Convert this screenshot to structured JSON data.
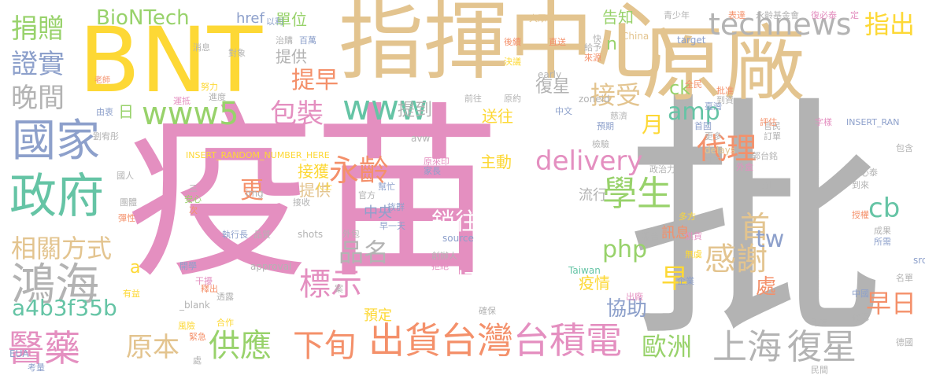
{
  "palette": {
    "pink": "#e48fc0",
    "gray": "#b3b3b3",
    "yellow": "#fdd835",
    "tan": "#e3c48f",
    "green": "#98d26b",
    "teal": "#65c4a5",
    "orange": "#f4906a",
    "blue": "#8da0cb"
  },
  "words": [
    {
      "id": "w01",
      "text": "疫苗"
    },
    {
      "id": "w02",
      "text": "批"
    },
    {
      "id": "w03",
      "text": "指揮中心"
    },
    {
      "id": "w04",
      "text": "原廠"
    },
    {
      "id": "w05",
      "text": "BNT"
    },
    {
      "id": "w06",
      "text": "政府"
    },
    {
      "id": "w07",
      "text": "國家"
    },
    {
      "id": "w08",
      "text": "鴻海"
    },
    {
      "id": "w09",
      "text": "醫藥"
    },
    {
      "id": "w10",
      "text": "出貨"
    },
    {
      "id": "w11",
      "text": "台灣"
    },
    {
      "id": "w12",
      "text": "台積電"
    },
    {
      "id": "w13",
      "text": "上海"
    },
    {
      "id": "w14",
      "text": "復星"
    },
    {
      "id": "w15",
      "text": "technews"
    },
    {
      "id": "w16",
      "text": "學生"
    },
    {
      "id": "w17",
      "text": "代理"
    },
    {
      "id": "w18",
      "text": "首"
    },
    {
      "id": "w19",
      "text": "感謝"
    },
    {
      "id": "w20",
      "text": "供應"
    },
    {
      "id": "w21",
      "text": "下旬"
    },
    {
      "id": "w22",
      "text": "標示"
    },
    {
      "id": "w23",
      "text": "永齡"
    },
    {
      "id": "w24",
      "text": "delivery"
    },
    {
      "id": "w25",
      "text": "www5"
    },
    {
      "id": "w26",
      "text": "www"
    },
    {
      "id": "w27",
      "text": "包裝"
    },
    {
      "id": "w28",
      "text": "BioNTech"
    },
    {
      "id": "w29",
      "text": "捐贈"
    },
    {
      "id": "w30",
      "text": "證實"
    },
    {
      "id": "w31",
      "text": "晚間"
    },
    {
      "id": "w32",
      "text": "相關方式"
    },
    {
      "id": "w33",
      "text": "品名"
    },
    {
      "id": "w34",
      "text": "原本"
    },
    {
      "id": "w35",
      "text": "歐洲"
    },
    {
      "id": "w36",
      "text": "早日"
    },
    {
      "id": "w37",
      "text": "協助"
    },
    {
      "id": "w38",
      "text": "a4b3f35b"
    },
    {
      "id": "w39",
      "text": "amp"
    },
    {
      "id": "w40",
      "text": "php"
    },
    {
      "id": "w41",
      "text": "月"
    },
    {
      "id": "w42",
      "text": "早"
    },
    {
      "id": "w43",
      "text": "接受"
    },
    {
      "id": "w44",
      "text": "提早"
    },
    {
      "id": "w45",
      "text": "cb"
    },
    {
      "id": "w46",
      "text": "tw"
    },
    {
      "id": "w47",
      "text": "處"
    },
    {
      "id": "w48",
      "text": "指出"
    },
    {
      "id": "w49",
      "text": "銷往"
    },
    {
      "id": "w50",
      "text": "製造"
    },
    {
      "id": "w51",
      "text": "施打"
    },
    {
      "id": "w52",
      "text": "期程"
    },
    {
      "id": "w53",
      "text": "單位"
    },
    {
      "id": "w54",
      "text": "href"
    },
    {
      "id": "w55",
      "text": "告知"
    },
    {
      "id": "w56",
      "text": "提供"
    },
    {
      "id": "w57",
      "text": "ck"
    },
    {
      "id": "w58",
      "text": "n"
    },
    {
      "id": "w59",
      "text": "復星"
    },
    {
      "id": "w60",
      "text": "提到"
    },
    {
      "id": "w61",
      "text": "送往"
    },
    {
      "id": "w62",
      "text": "主動"
    },
    {
      "id": "w63",
      "text": "接獲"
    },
    {
      "id": "w64",
      "text": "更"
    },
    {
      "id": "w65",
      "text": "提供"
    },
    {
      "id": "w66",
      "text": "流行"
    },
    {
      "id": "w67",
      "text": "中央"
    },
    {
      "id": "w68",
      "text": "疫情"
    },
    {
      "id": "w69",
      "text": "訊息"
    },
    {
      "id": "w70",
      "text": "預定"
    },
    {
      "id": "w71",
      "text": "a"
    },
    {
      "id": "w72",
      "text": "日"
    },
    {
      "id": "w73",
      "text": "INSERT_RANDOM_NUMBER_HERE"
    },
    {
      "id": "w74",
      "text": "INSERT_RAN"
    },
    {
      "id": "w75",
      "text": "zoneid"
    },
    {
      "id": "w76",
      "text": "source"
    },
    {
      "id": "w77",
      "text": "approval"
    },
    {
      "id": "w78",
      "text": "_blank"
    },
    {
      "id": "w79",
      "text": "Taiwan"
    },
    {
      "id": "w80",
      "text": "shots"
    },
    {
      "id": "w81",
      "text": "img"
    },
    {
      "id": "w82",
      "text": "target"
    },
    {
      "id": "w83",
      "text": "China"
    },
    {
      "id": "w84",
      "text": "early"
    },
    {
      "id": "w85",
      "text": "delays"
    },
    {
      "id": "w86",
      "text": "EUA"
    },
    {
      "id": "w87",
      "text": "src"
    },
    {
      "id": "w88",
      "text": "avw"
    },
    {
      "id": "w89",
      "text": "永齡基金會"
    },
    {
      "id": "w90",
      "text": "青少年"
    },
    {
      "id": "w91",
      "text": "大眾"
    },
    {
      "id": "w92",
      "text": "表達"
    },
    {
      "id": "w93",
      "text": "復必泰"
    },
    {
      "id": "w94",
      "text": "定"
    },
    {
      "id": "w95",
      "text": "治購"
    },
    {
      "id": "w96",
      "text": "百萬"
    },
    {
      "id": "w97",
      "text": "以利"
    },
    {
      "id": "w98",
      "text": "消息"
    },
    {
      "id": "w99",
      "text": "對象"
    },
    {
      "id": "w100",
      "text": "老師"
    },
    {
      "id": "w101",
      "text": "努力"
    },
    {
      "id": "w102",
      "text": "進度"
    },
    {
      "id": "w103",
      "text": "運抵"
    },
    {
      "id": "w104",
      "text": "由衷"
    },
    {
      "id": "w105",
      "text": "劉宥彤"
    },
    {
      "id": "w106",
      "text": "國人"
    },
    {
      "id": "w107",
      "text": "團體"
    },
    {
      "id": "w108",
      "text": "彈性"
    },
    {
      "id": "w109",
      "text": "有益"
    },
    {
      "id": "w110",
      "text": "緊急"
    },
    {
      "id": "w111",
      "text": "考量"
    },
    {
      "id": "w112",
      "text": "風險"
    },
    {
      "id": "w113",
      "text": "合作"
    },
    {
      "id": "w114",
      "text": "透露"
    },
    {
      "id": "w115",
      "text": "釋出"
    },
    {
      "id": "w116",
      "text": "干擾"
    },
    {
      "id": "w117",
      "text": "開學"
    },
    {
      "id": "w118",
      "text": "執行長"
    },
    {
      "id": "w119",
      "text": "品質"
    },
    {
      "id": "w120",
      "text": "安心"
    },
    {
      "id": "w121",
      "text": "人士"
    },
    {
      "id": "w122",
      "text": "官方"
    },
    {
      "id": "w123",
      "text": "幫忙"
    },
    {
      "id": "w124",
      "text": "家長"
    },
    {
      "id": "w125",
      "text": "原來印"
    },
    {
      "id": "w126",
      "text": "接收"
    },
    {
      "id": "w127",
      "text": "外包"
    },
    {
      "id": "w128",
      "text": "早一天"
    },
    {
      "id": "w129",
      "text": "族群"
    },
    {
      "id": "w130",
      "text": "創辦人"
    },
    {
      "id": "w131",
      "text": "拒絕"
    },
    {
      "id": "w132",
      "text": "確保"
    },
    {
      "id": "w133",
      "text": "出廠"
    },
    {
      "id": "w134",
      "text": "企業"
    },
    {
      "id": "w135",
      "text": "無虞"
    },
    {
      "id": "w136",
      "text": "供貨"
    },
    {
      "id": "w137",
      "text": "報告"
    },
    {
      "id": "w138",
      "text": "多方"
    },
    {
      "id": "w139",
      "text": "所需"
    },
    {
      "id": "w140",
      "text": "成果"
    },
    {
      "id": "w141",
      "text": "名單"
    },
    {
      "id": "w142",
      "text": "確認"
    },
    {
      "id": "w143",
      "text": "中國"
    },
    {
      "id": "w144",
      "text": "印有"
    },
    {
      "id": "w145",
      "text": "德國"
    },
    {
      "id": "w146",
      "text": "民間"
    },
    {
      "id": "w147",
      "text": "傅必泰"
    },
    {
      "id": "w148",
      "text": "到來"
    },
    {
      "id": "w149",
      "text": "授權"
    },
    {
      "id": "w150",
      "text": "政治力"
    },
    {
      "id": "w151",
      "text": "在內"
    },
    {
      "id": "w152",
      "text": "外盒"
    },
    {
      "id": "w153",
      "text": "郭台銘"
    },
    {
      "id": "w154",
      "text": "包含"
    },
    {
      "id": "w155",
      "text": "更多"
    },
    {
      "id": "w156",
      "text": "訂單"
    },
    {
      "id": "w157",
      "text": "官民"
    },
    {
      "id": "w158",
      "text": "字樣"
    },
    {
      "id": "w159",
      "text": "評估"
    },
    {
      "id": "w160",
      "text": "首國"
    },
    {
      "id": "w161",
      "text": "預期"
    },
    {
      "id": "w162",
      "text": "慈濟"
    },
    {
      "id": "w163",
      "text": "臺灣"
    },
    {
      "id": "w164",
      "text": "全民"
    },
    {
      "id": "w165",
      "text": "批准"
    },
    {
      "id": "w166",
      "text": "到資"
    },
    {
      "id": "w167",
      "text": "中文"
    },
    {
      "id": "w168",
      "text": "原約"
    },
    {
      "id": "w169",
      "text": "前往"
    },
    {
      "id": "w170",
      "text": "決議"
    },
    {
      "id": "w171",
      "text": "給予"
    },
    {
      "id": "w172",
      "text": "來源"
    },
    {
      "id": "w173",
      "text": "快"
    },
    {
      "id": "w174",
      "text": "直送"
    },
    {
      "id": "w175",
      "text": "後續"
    },
    {
      "id": "w176",
      "text": "檢驗"
    },
    {
      "id": "w177",
      "text": "裝"
    },
    {
      "id": "w178",
      "text": "劑"
    },
    {
      "id": "w179",
      "text": "三"
    },
    {
      "id": "w180",
      "text": "次"
    },
    {
      "id": "w181",
      "text": "處"
    },
    {
      "id": "w182",
      "text": "案"
    }
  ]
}
